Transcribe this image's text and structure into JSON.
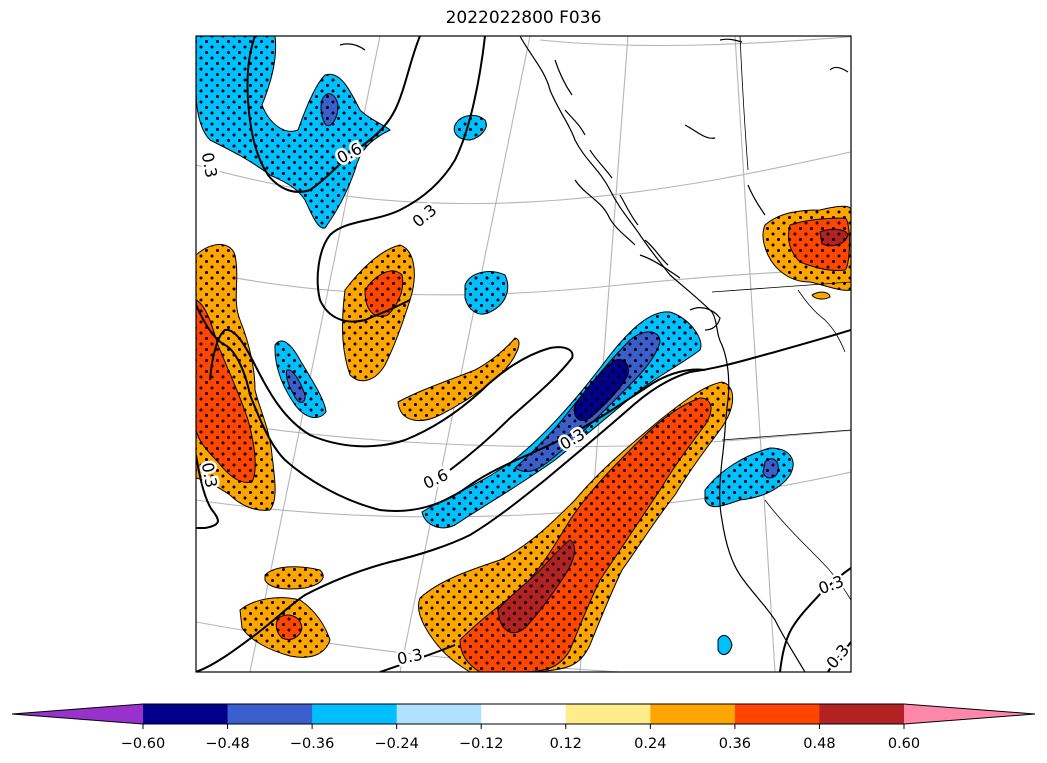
{
  "title": "2022022800 F036",
  "colorbar": {
    "ticks": [
      "−0.60",
      "−0.48",
      "−0.36",
      "−0.24",
      "−0.12",
      "0.12",
      "0.24",
      "0.36",
      "0.48",
      "0.60"
    ],
    "colors": [
      "#9932cc",
      "#00008b",
      "#3a5fcd",
      "#00bfff",
      "#b0e2ff",
      "#ffffff",
      "#ffec8b",
      "#ffa500",
      "#ff4500",
      "#b22222",
      "#ff88aa"
    ],
    "extend": "both"
  },
  "contour_labels": [
    {
      "text": "0.6"
    },
    {
      "text": "0.3"
    },
    {
      "text": "0.3"
    },
    {
      "text": "0.3"
    },
    {
      "text": "0.3"
    },
    {
      "text": "0.6"
    },
    {
      "text": "0.3"
    },
    {
      "text": "0.3"
    },
    {
      "text": "0.3"
    }
  ],
  "colors": {
    "blue": "#00bfff",
    "mid_blue": "#3a5fcd",
    "dark_blue": "#00008b",
    "orange": "#ffa500",
    "red_orange": "#ff4500",
    "dark_red": "#b22222",
    "grid": "#b5b5b5"
  }
}
